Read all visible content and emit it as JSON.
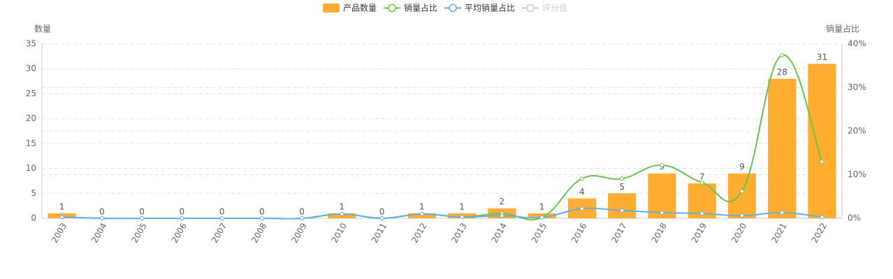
{
  "chart_data": {
    "type": "bar",
    "y_label": "数量",
    "y2_label": "销量占比",
    "categories": [
      "2003",
      "2004",
      "2005",
      "2006",
      "2007",
      "2008",
      "2009",
      "2010",
      "2011",
      "2012",
      "2013",
      "2014",
      "2015",
      "2016",
      "2017",
      "2018",
      "2019",
      "2020",
      "2021",
      "2022"
    ],
    "series": [
      {
        "name": "产品数量",
        "type": "bar",
        "color": "#ffad2e",
        "values": [
          1,
          0,
          0,
          0,
          0,
          0,
          0,
          1,
          0,
          1,
          1,
          2,
          1,
          4,
          5,
          9,
          7,
          9,
          28,
          31
        ]
      },
      {
        "name": "销量占比",
        "type": "line",
        "axis": "y2",
        "color": "#6cc24f",
        "values": [
          0.3,
          0,
          0,
          0,
          0,
          0,
          0,
          1.0,
          0,
          1.0,
          0.3,
          1.1,
          0.2,
          9.1,
          9.1,
          12.2,
          8.2,
          6.2,
          37.4,
          13.0
        ]
      },
      {
        "name": "平均销量占比",
        "type": "line",
        "axis": "y2",
        "color": "#64afe0",
        "values": [
          0.3,
          0,
          0,
          0,
          0,
          0,
          0,
          1.0,
          0,
          1.0,
          0.3,
          0.6,
          0.2,
          2.2,
          1.8,
          1.3,
          1.1,
          0.6,
          1.3,
          0.3
        ]
      },
      {
        "name": "评分值",
        "type": "line",
        "axis": "y2",
        "color": "#cccccc",
        "hidden": true
      }
    ],
    "ylim": [
      0,
      35
    ],
    "yticks": [
      0,
      5,
      10,
      15,
      20,
      25,
      30,
      35
    ],
    "y2lim": [
      0,
      40
    ],
    "y2ticks": [
      {
        "value": 0,
        "label": "0%"
      },
      {
        "value": 10,
        "label": "10%"
      },
      {
        "value": 20,
        "label": "20%"
      },
      {
        "value": 30,
        "label": "30%"
      },
      {
        "value": 40,
        "label": "40%"
      }
    ],
    "grid": true
  }
}
